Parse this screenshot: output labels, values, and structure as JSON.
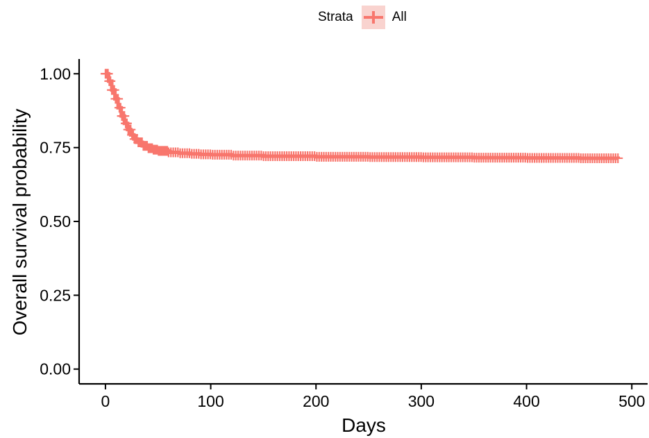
{
  "chart_data": {
    "type": "line",
    "title": "",
    "xlabel": "Days",
    "ylabel": "Overall survival probability",
    "xlim": [
      -25,
      515
    ],
    "ylim": [
      -0.05,
      1.05
    ],
    "x_ticks": [
      0,
      100,
      200,
      300,
      400,
      500
    ],
    "y_ticks": [
      0,
      0.25,
      0.5,
      0.75,
      1
    ],
    "x_tick_labels": [
      "0",
      "100",
      "200",
      "300",
      "400",
      "500"
    ],
    "y_tick_labels": [
      "0.00",
      "0.25",
      "0.50",
      "0.75",
      "1.00"
    ],
    "grid": false,
    "legend": {
      "title": "Strata",
      "position": "top",
      "entries": [
        "All"
      ]
    },
    "series": [
      {
        "name": "All",
        "color": "#F8766D",
        "censor_marks": true,
        "x": [
          0,
          3,
          6,
          9,
          12,
          15,
          18,
          21,
          24,
          27,
          30,
          35,
          40,
          45,
          50,
          60,
          70,
          80,
          90,
          100,
          120,
          150,
          200,
          250,
          300,
          350,
          400,
          450,
          487
        ],
        "y": [
          1.0,
          0.975,
          0.945,
          0.915,
          0.885,
          0.857,
          0.832,
          0.811,
          0.793,
          0.779,
          0.768,
          0.756,
          0.748,
          0.743,
          0.739,
          0.734,
          0.731,
          0.729,
          0.727,
          0.726,
          0.723,
          0.721,
          0.719,
          0.718,
          0.717,
          0.716,
          0.715,
          0.714,
          0.713
        ]
      }
    ]
  }
}
